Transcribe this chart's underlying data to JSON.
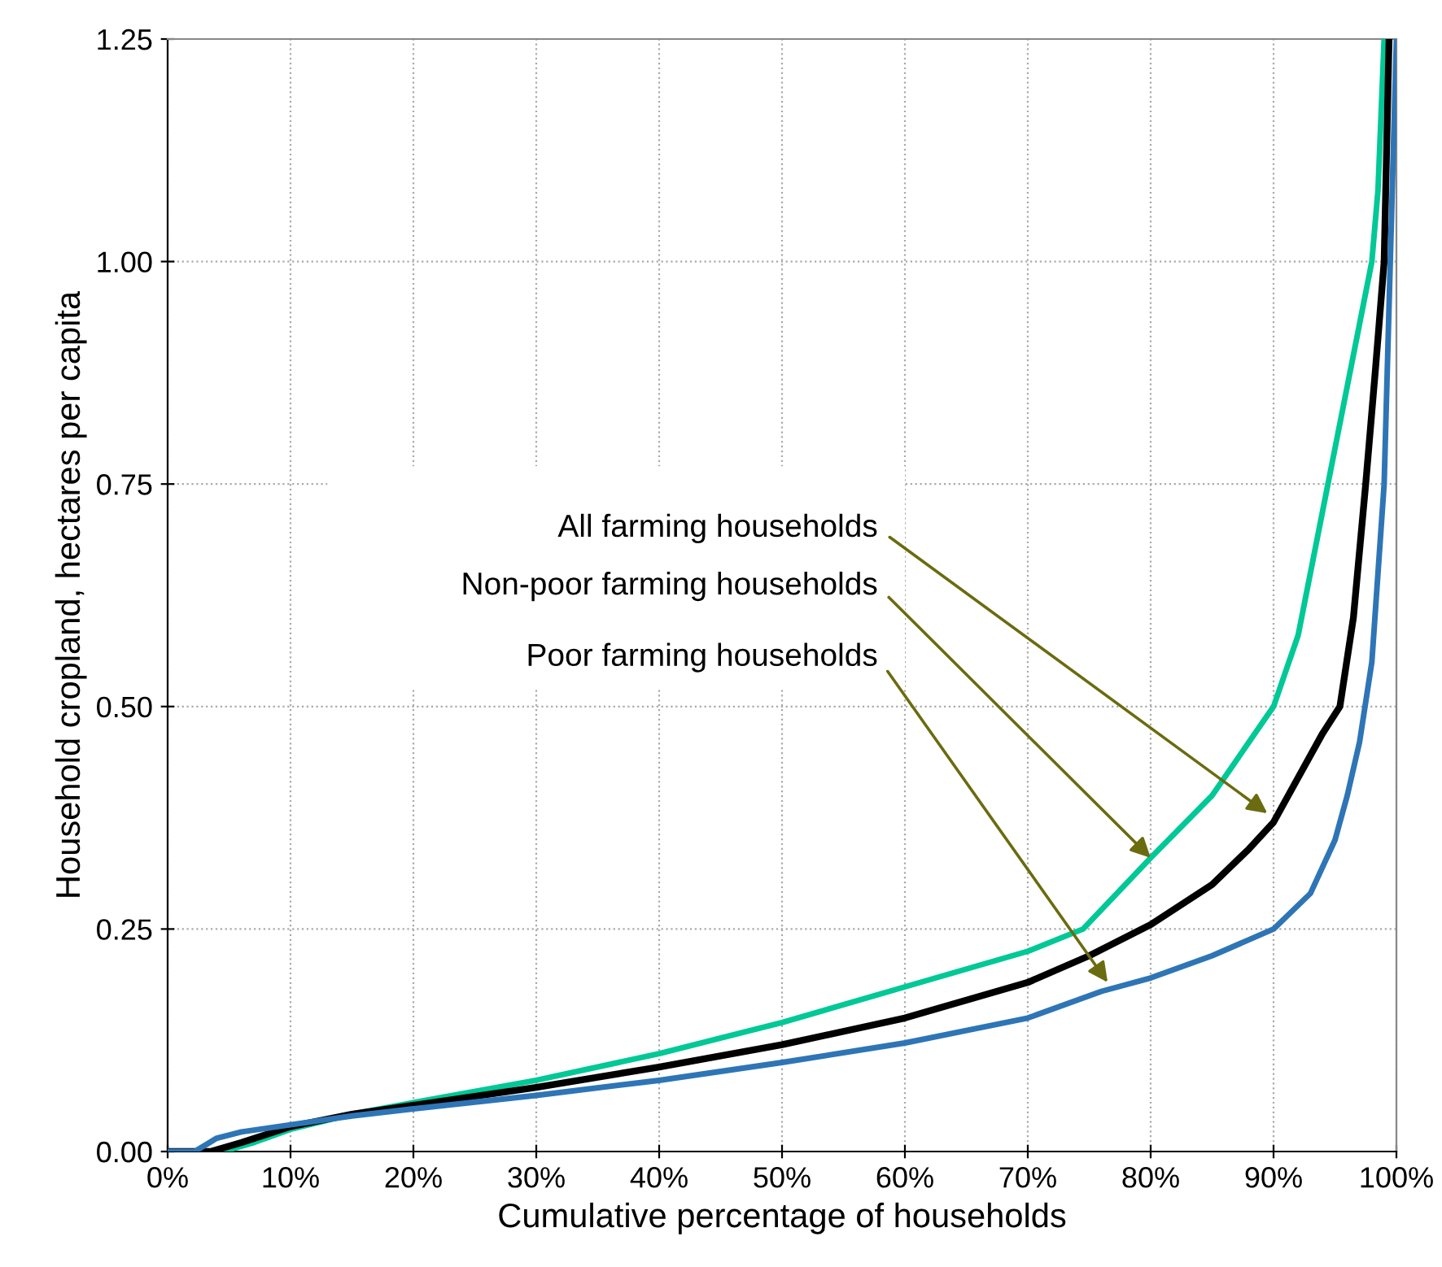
{
  "chart_data": {
    "type": "line",
    "xlabel": "Cumulative percentage of households",
    "ylabel": "Household cropland, hectares per capita",
    "xlim": [
      0,
      100
    ],
    "ylim": [
      0,
      1.25
    ],
    "xticks": [
      {
        "value": 0,
        "label": "0%"
      },
      {
        "value": 10,
        "label": "10%"
      },
      {
        "value": 20,
        "label": "20%"
      },
      {
        "value": 30,
        "label": "30%"
      },
      {
        "value": 40,
        "label": "40%"
      },
      {
        "value": 50,
        "label": "50%"
      },
      {
        "value": 60,
        "label": "60%"
      },
      {
        "value": 70,
        "label": "70%"
      },
      {
        "value": 80,
        "label": "80%"
      },
      {
        "value": 90,
        "label": "90%"
      },
      {
        "value": 100,
        "label": "100%"
      }
    ],
    "yticks": [
      {
        "value": 0,
        "label": "0.00"
      },
      {
        "value": 0.25,
        "label": "0.25"
      },
      {
        "value": 0.5,
        "label": "0.50"
      },
      {
        "value": 0.75,
        "label": "0.75"
      },
      {
        "value": 1.0,
        "label": "1.00"
      },
      {
        "value": 1.25,
        "label": "1.25"
      }
    ],
    "grid": true,
    "legend": false,
    "marker": "none",
    "line_style": "solid",
    "series": [
      {
        "color": "#00c896",
        "x": [
          0,
          4.5,
          7,
          10,
          15,
          20,
          30,
          40,
          50,
          60,
          70,
          74.5,
          80,
          85,
          90,
          92,
          94,
          95,
          96,
          97,
          98,
          98.5,
          99
        ],
        "values": [
          0,
          0,
          0.01,
          0.025,
          0.042,
          0.055,
          0.08,
          0.11,
          0.145,
          0.185,
          0.225,
          0.25,
          0.33,
          0.4,
          0.5,
          0.58,
          0.72,
          0.79,
          0.86,
          0.93,
          1.0,
          1.08,
          1.25
        ]
      },
      {
        "color": "#000000",
        "x": [
          0,
          3.5,
          6,
          10,
          15,
          20,
          30,
          40,
          50,
          60,
          70,
          75,
          80,
          85,
          88,
          90,
          92,
          94,
          95.4,
          96.5,
          97.5,
          98.3,
          99,
          99.4
        ],
        "values": [
          0,
          0,
          0.01,
          0.028,
          0.042,
          0.052,
          0.072,
          0.095,
          0.12,
          0.15,
          0.19,
          0.22,
          0.255,
          0.3,
          0.34,
          0.37,
          0.42,
          0.47,
          0.5,
          0.6,
          0.75,
          0.88,
          1.0,
          1.25
        ]
      },
      {
        "color": "#2e75b6",
        "x": [
          0,
          2.2,
          4,
          6,
          10,
          15,
          20,
          30,
          40,
          50,
          60,
          70,
          76,
          80,
          85,
          90,
          93,
          95,
          96,
          97,
          98,
          99,
          99.5,
          100
        ],
        "values": [
          0,
          0,
          0.015,
          0.022,
          0.03,
          0.04,
          0.048,
          0.063,
          0.08,
          0.1,
          0.122,
          0.15,
          0.18,
          0.195,
          0.22,
          0.25,
          0.29,
          0.35,
          0.4,
          0.46,
          0.55,
          0.75,
          1.0,
          1.25
        ]
      }
    ],
    "annotations": [
      {
        "text": "All farming households",
        "x": 89.5,
        "y": 0.38
      },
      {
        "text": "Non-poor farming households",
        "x": 80,
        "y": 0.33
      },
      {
        "text": "Poor farming households",
        "x": 76.5,
        "y": 0.19
      }
    ]
  }
}
